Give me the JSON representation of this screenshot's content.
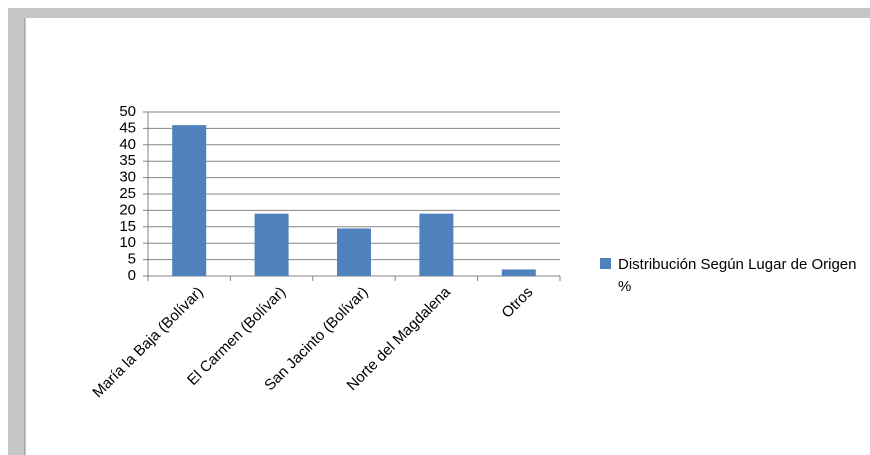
{
  "chart_data": {
    "type": "bar",
    "categories": [
      "María la Baja (Bolívar)",
      "El Carmen (Bolívar)",
      "San Jacinto (Bolívar)",
      "Norte  del Magdalena",
      "Otros"
    ],
    "series": [
      {
        "name": "Distribución Según Lugar de Origen %",
        "color": "#4f81bd",
        "values": [
          46,
          19,
          14.5,
          19,
          2
        ]
      }
    ],
    "ylim": [
      0,
      50
    ],
    "yticks": [
      0,
      5,
      10,
      15,
      20,
      25,
      30,
      35,
      40,
      45,
      50
    ],
    "grid": true,
    "legend": "right"
  }
}
